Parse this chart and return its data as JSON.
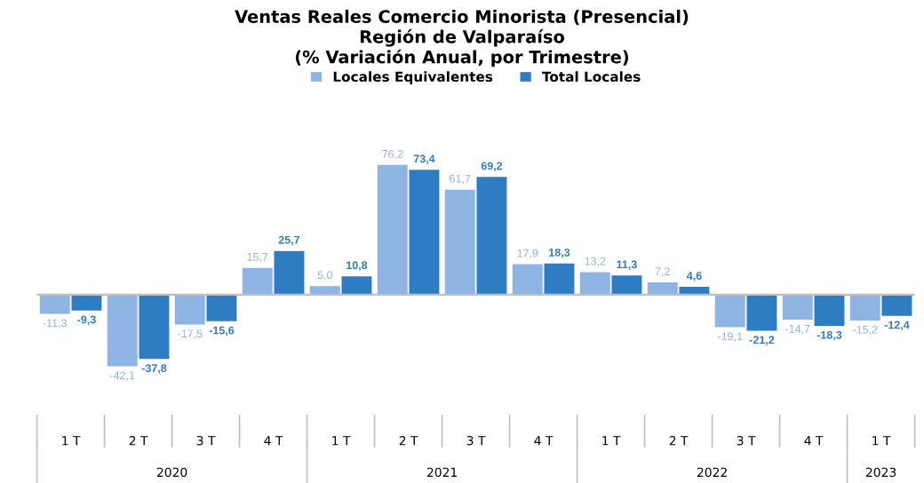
{
  "chart_data": {
    "type": "bar",
    "title": "Ventas Reales Comercio Minorista (Presencial)\nRegión de Valparaíso\n(% Variación Anual, por Trimestre)",
    "categories": [
      "1 T",
      "2 T",
      "3 T",
      "4 T",
      "1 T",
      "2 T",
      "3 T",
      "4 T",
      "1 T",
      "2 T",
      "3 T",
      "4 T",
      "1 T"
    ],
    "series": [
      {
        "name": "Locales Equivalentes",
        "color": "#8db4e2",
        "values": [
          -11.3,
          -42.1,
          -17.5,
          15.7,
          5.0,
          76.2,
          61.7,
          17.9,
          13.2,
          7.2,
          -19.1,
          -14.7,
          -15.2
        ],
        "value_labels": [
          "-11,3",
          "-42,1",
          "-17,5",
          "15,7",
          "5,0",
          "76,2",
          "61,7",
          "17,9",
          "13,2",
          "7,2",
          "-19,1",
          "-14,7",
          "-15,2"
        ]
      },
      {
        "name": "Total Locales",
        "color": "#2e7dc2",
        "values": [
          -9.3,
          -37.8,
          -15.6,
          25.7,
          10.8,
          73.4,
          69.2,
          18.3,
          11.3,
          4.6,
          -21.2,
          -18.3,
          -12.4
        ],
        "value_labels": [
          "-9,3",
          "-37,8",
          "-15,6",
          "25,7",
          "10,8",
          "73,4",
          "69,2",
          "18,3",
          "11,3",
          "4,6",
          "-21,2",
          "-18,3",
          "-12,4"
        ]
      }
    ],
    "annotations": [
      "2020",
      "2021",
      "2022",
      "2023"
    ],
    "legend": "top",
    "grid": false
  }
}
